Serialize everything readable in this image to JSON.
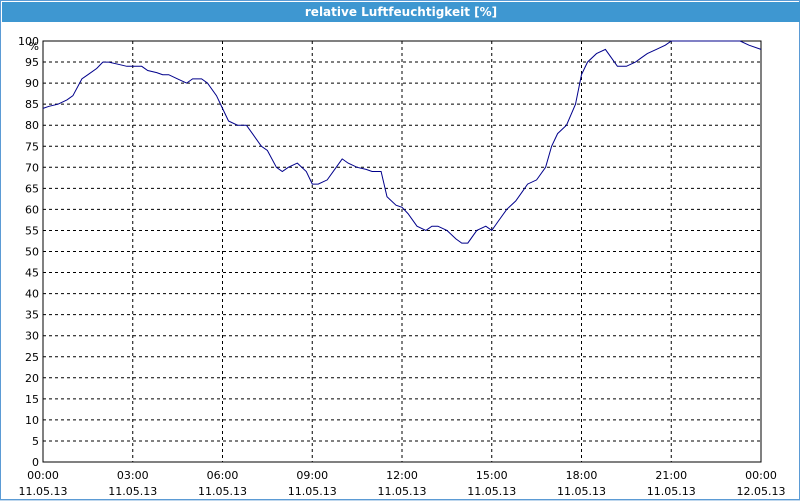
{
  "window": {
    "title": "relative Luftfeuchtigkeit [%]"
  },
  "chart_data": {
    "type": "line",
    "title": "relative Luftfeuchtigkeit [%]",
    "ylabel": "%",
    "xlabel": "",
    "ylim": [
      0,
      100
    ],
    "y_ticks": [
      0,
      5,
      10,
      15,
      20,
      25,
      30,
      35,
      40,
      45,
      50,
      55,
      60,
      65,
      70,
      75,
      80,
      85,
      90,
      95,
      100
    ],
    "x_ticks": [
      {
        "time": "00:00",
        "date": "11.05.13"
      },
      {
        "time": "03:00",
        "date": "11.05.13"
      },
      {
        "time": "06:00",
        "date": "11.05.13"
      },
      {
        "time": "09:00",
        "date": "11.05.13"
      },
      {
        "time": "12:00",
        "date": "11.05.13"
      },
      {
        "time": "15:00",
        "date": "11.05.13"
      },
      {
        "time": "18:00",
        "date": "11.05.13"
      },
      {
        "time": "21:00",
        "date": "11.05.13"
      },
      {
        "time": "00:00",
        "date": "12.05.13"
      }
    ],
    "grid": true,
    "line_color": "#00008b",
    "series": [
      {
        "x_hours": [
          0,
          0.2,
          0.5,
          0.8,
          1.0,
          1.3,
          1.5,
          1.8,
          2.0,
          2.2,
          2.5,
          2.8,
          3.0,
          3.3,
          3.5,
          3.8,
          4.0,
          4.2,
          4.5,
          4.8,
          5.0,
          5.3,
          5.5,
          5.8,
          6.0,
          6.2,
          6.5,
          6.8,
          7.0,
          7.3,
          7.5,
          7.8,
          8.0,
          8.2,
          8.5,
          8.8,
          9.0,
          9.2,
          9.5,
          9.8,
          10.0,
          10.2,
          10.5,
          10.8,
          11.0,
          11.3,
          11.5,
          11.8,
          12.0,
          12.2,
          12.5,
          12.8,
          13.0,
          13.2,
          13.5,
          13.8,
          14.0,
          14.2,
          14.5,
          14.8,
          15.0,
          15.2,
          15.5,
          15.8,
          16.0,
          16.2,
          16.5,
          16.8,
          17.0,
          17.2,
          17.5,
          17.8,
          18.0,
          18.2,
          18.5,
          18.8,
          19.0,
          19.2,
          19.5,
          19.8,
          20.0,
          20.2,
          20.5,
          20.8,
          21.0,
          21.5,
          22.0,
          22.5,
          23.0,
          23.3,
          23.6,
          24.0
        ],
        "values": [
          84,
          84.5,
          85,
          86,
          87,
          91,
          92,
          93.5,
          95,
          95,
          94.5,
          94,
          94,
          94,
          93,
          92.5,
          92,
          92,
          91,
          90,
          91,
          91,
          90,
          87,
          84,
          81,
          80,
          80,
          78,
          75,
          74,
          70,
          69,
          70,
          71,
          69,
          66,
          66,
          67,
          70,
          72,
          71,
          70,
          69.5,
          69,
          69,
          63,
          61,
          60.5,
          59,
          56,
          55,
          56,
          56,
          55,
          53,
          52,
          52,
          55,
          56,
          55,
          57,
          60,
          62,
          64,
          66,
          67,
          70,
          75,
          78,
          80,
          85,
          92,
          95,
          97,
          98,
          96,
          94,
          94,
          95,
          96,
          97,
          98,
          99,
          100,
          100,
          100,
          100,
          100,
          100,
          99,
          98
        ]
      }
    ]
  }
}
